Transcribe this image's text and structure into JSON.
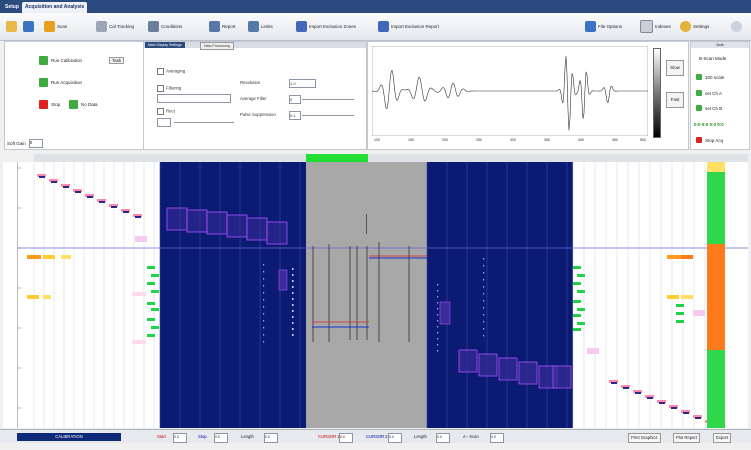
{
  "tabs": [
    "Setup",
    "Acquisition and Analysis"
  ],
  "toolbar": {
    "left": [
      "",
      "",
      "Scan",
      "Cal Tracking",
      "Conditions",
      "Report",
      "Limits",
      "Import Exclusion Zones",
      "Import Exclusion Report"
    ],
    "right": [
      "File Options",
      "Indexes",
      "Settings"
    ]
  },
  "control_panel": {
    "start_calibration": "Run Calibration",
    "field_button": "Task",
    "start_acquisition": "Run Acquisition",
    "stop": "Stop",
    "next": "No Data",
    "soft_gain_label": "Soft Gain",
    "soft_gain_value": "0"
  },
  "settings_panel": {
    "tabs": [
      "Main Display Settings",
      "Data Processing"
    ],
    "options": [
      "Averaging",
      "Filtering",
      "Rect"
    ],
    "fields": [
      "Resolution",
      "Average Filter",
      "Pulse Suppression"
    ],
    "field_values": [
      "1.0",
      "2",
      "0.1"
    ]
  },
  "waveform": {
    "ticks": [
      "100",
      "150",
      "200",
      "250",
      "300",
      "350",
      "400",
      "450",
      "500"
    ],
    "btn_a": "Slow",
    "btn_b": "Fast"
  },
  "right_panel": {
    "header": "Axis",
    "mode": "B-Scan Mode",
    "items": [
      "100 scale",
      "set Ch A",
      "set Ch B"
    ],
    "counter": "0:0 0:0 0:0 0:0",
    "stop_label": "Stop Acq"
  },
  "scan_header_active": "",
  "status_bar": {
    "calibration": "CALIBRATION",
    "items": [
      "Start",
      "0.0",
      "Stop",
      "0.0",
      "Length",
      "0.0",
      "CURSOR 1",
      "0.0",
      "CURSOR 2",
      "0.0",
      "Length",
      "0.0",
      "A - Scan",
      "0.0"
    ],
    "right": [
      "Print Graphics",
      "Plot Report",
      "Export"
    ]
  },
  "colors": {
    "accent": "#2b4a7e",
    "bscan_blue": "#0a1a6e",
    "gray_map": "#a6a6a6",
    "marker_green": "#22cc44",
    "marker_orange": "#ff7a1a",
    "marker_purple": "#aa44ff"
  }
}
